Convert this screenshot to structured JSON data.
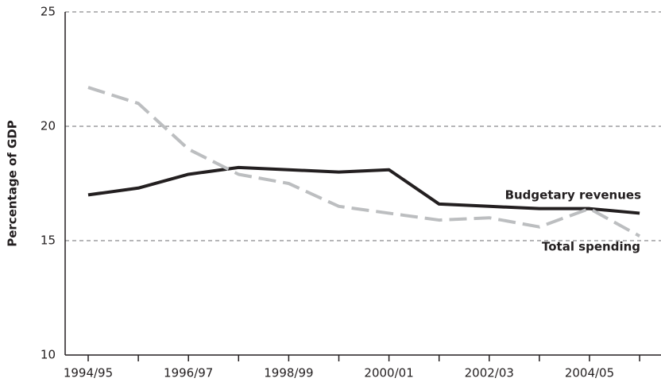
{
  "chart_data": {
    "type": "line",
    "y_label": "Percentage of GDP",
    "categories": [
      "1994/95",
      null,
      "1996/97",
      null,
      "1998/99",
      null,
      "2000/01",
      null,
      "2002/03",
      null,
      "2004/05",
      null
    ],
    "series": [
      {
        "name": "Budgetary revenues",
        "color": "#231f20",
        "values": [
          17.0,
          17.3,
          17.9,
          18.2,
          18.1,
          18.0,
          18.1,
          16.6,
          16.5,
          16.4,
          16.4,
          16.2
        ]
      },
      {
        "name": "Total spending",
        "color": "#bcbec0",
        "values": [
          21.7,
          21.0,
          19.0,
          17.9,
          17.5,
          16.5,
          16.2,
          15.9,
          16.0,
          15.6,
          16.4,
          15.2
        ]
      }
    ],
    "ylim": [
      10,
      25
    ],
    "yticks": [
      10,
      15,
      20,
      25
    ],
    "grid": true
  }
}
